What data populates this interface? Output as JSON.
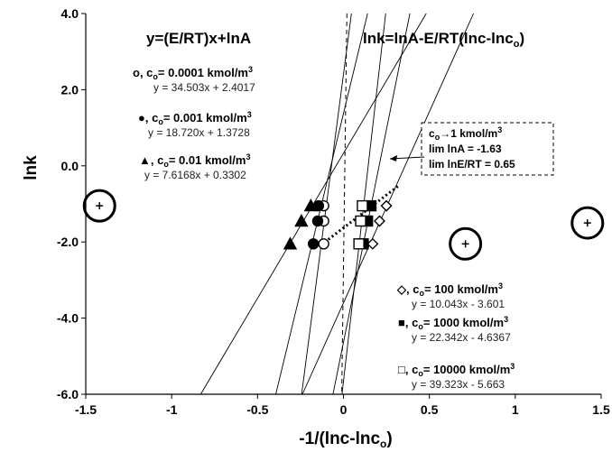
{
  "chart_data": {
    "type": "scatter",
    "xlabel": "-1/(lnc-lnc",
    "xlabel_sub": "o",
    "xlabel_close": ")",
    "ylabel": "lnk",
    "xlim": [
      -1.5,
      1.5
    ],
    "ylim": [
      -6.0,
      4.0
    ],
    "x_ticks": [
      -1.5,
      -1,
      -0.5,
      0,
      0.5,
      1,
      1.5
    ],
    "x_tick_labels": [
      "-1.5",
      "-1",
      "-0.5",
      "0",
      "0.5",
      "1",
      "1.5"
    ],
    "y_ticks": [
      4.0,
      2.0,
      0.0,
      -2.0,
      -4.0,
      -6.0
    ],
    "y_tick_labels": [
      "4.0",
      "2.0",
      "0.0",
      "-2.0",
      "-4.0",
      "-6.0"
    ],
    "grid": false,
    "header_left": "y=(E/RT)x+lnA",
    "header_right": "lnk=lnA-E/RT(lnc-lnc",
    "header_right_sub": "o",
    "header_right_close": ")",
    "series": [
      {
        "name": "c",
        "name_sub": "o",
        "name_rest": "= 0.0001 kmol/m",
        "name_sup": "3",
        "symbol": "o",
        "marker": "open-circle",
        "equation": "y = 34.503x + 2.4017",
        "slope": 34.503,
        "intercept": 2.4017,
        "points": [
          {
            "x": -0.115,
            "y": -1.05
          },
          {
            "x": -0.115,
            "y": -1.45
          },
          {
            "x": -0.115,
            "y": -2.05
          }
        ]
      },
      {
        "name": "c",
        "name_sub": "o",
        "name_rest": "= 0.001 kmol/m",
        "name_sup": "3",
        "symbol": "●",
        "marker": "filled-circle",
        "equation": "y = 18.720x + 1.3728",
        "slope": 18.72,
        "intercept": 1.3728,
        "points": [
          {
            "x": -0.145,
            "y": -1.05
          },
          {
            "x": -0.15,
            "y": -1.45
          },
          {
            "x": -0.175,
            "y": -2.05
          }
        ]
      },
      {
        "name": "c",
        "name_sub": "o",
        "name_rest": "= 0.01 kmol/m",
        "name_sup": "3",
        "symbol": "▲",
        "marker": "filled-triangle",
        "equation": "y = 7.6168x + 0.3302",
        "slope": 7.6168,
        "intercept": 0.3302,
        "points": [
          {
            "x": -0.19,
            "y": -1.05
          },
          {
            "x": -0.245,
            "y": -1.45
          },
          {
            "x": -0.31,
            "y": -2.05
          }
        ]
      },
      {
        "name": "c",
        "name_sub": "o",
        "name_rest": "= 100 kmol/m",
        "name_sup": "3",
        "symbol": "◇",
        "marker": "open-diamond",
        "equation": "y = 10.043x - 3.601",
        "slope": 10.043,
        "intercept": -3.601,
        "points": [
          {
            "x": 0.25,
            "y": -1.05
          },
          {
            "x": 0.21,
            "y": -1.45
          },
          {
            "x": 0.17,
            "y": -2.05
          }
        ]
      },
      {
        "name": "c",
        "name_sub": "o",
        "name_rest": "= 1000 kmol/m",
        "name_sup": "3",
        "symbol": "■",
        "marker": "filled-square",
        "equation": "y = 22.342x - 4.6367",
        "slope": 22.342,
        "intercept": -4.6367,
        "points": [
          {
            "x": 0.16,
            "y": -1.05
          },
          {
            "x": 0.14,
            "y": -1.45
          },
          {
            "x": 0.115,
            "y": -2.05
          }
        ]
      },
      {
        "name": "c",
        "name_sub": "o",
        "name_rest": "= 10000 kmol/m",
        "name_sup": "3",
        "symbol": "□",
        "marker": "open-square",
        "equation": "y = 39.323x - 5.663",
        "slope": 39.323,
        "intercept": -5.663,
        "points": [
          {
            "x": 0.11,
            "y": -1.05
          },
          {
            "x": 0.1,
            "y": -1.45
          },
          {
            "x": 0.09,
            "y": -2.05
          }
        ]
      }
    ],
    "dotted_line": {
      "slope": 3.45,
      "intercept": -1.63,
      "x_range": [
        -0.13,
        0.32
      ]
    },
    "dashed_vertical": {
      "x_top": 0.02,
      "x_bottom": -0.01
    },
    "circled_points": [
      {
        "x": -1.42,
        "y": -1.05
      },
      {
        "x": 0.71,
        "y": -2.05
      },
      {
        "x": 1.42,
        "y": -1.5
      }
    ],
    "annotation": {
      "line1_pre": "c",
      "line1_sub": "o",
      "line1_arrow": "→",
      "line1_post": "1 kmol/m",
      "line1_sup": "3",
      "line2": "lim lnA  = -1.63",
      "line3": "lim lnE/RT  = 0.65"
    },
    "colors": {
      "axis": "#000000",
      "markers": "#000000",
      "fit_lines": "#000000"
    }
  }
}
